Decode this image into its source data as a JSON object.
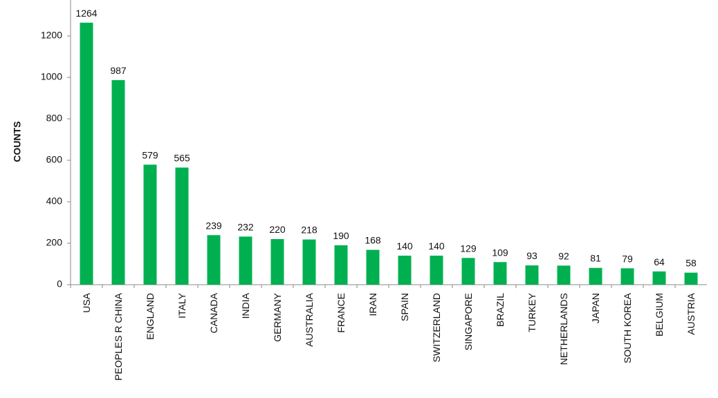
{
  "chart_data": {
    "type": "bar",
    "y_label": "COUNTS",
    "categories": [
      "USA",
      "PEOPLES R CHINA",
      "ENGLAND",
      "ITALY",
      "CANADA",
      "INDIA",
      "GERMANY",
      "AUSTRALIA",
      "FRANCE",
      "IRAN",
      "SPAIN",
      "SWITZERLAND",
      "SINGAPORE",
      "BRAZIL",
      "TURKEY",
      "NETHERLANDS",
      "JAPAN",
      "SOUTH KOREA",
      "BELGIUM",
      "AUSTRIA"
    ],
    "values": [
      1264,
      987,
      579,
      565,
      239,
      232,
      220,
      218,
      190,
      168,
      140,
      140,
      129,
      109,
      93,
      92,
      81,
      79,
      64,
      58
    ],
    "color": "#00b050",
    "ylim": [
      0,
      1400
    ],
    "yticks": [
      0,
      200,
      400,
      600,
      800,
      1000,
      1200
    ],
    "grid": false
  }
}
